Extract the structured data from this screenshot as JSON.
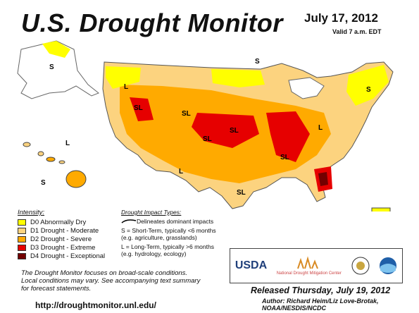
{
  "header": {
    "title": "U.S. Drought Monitor",
    "date": "July 17, 2012",
    "valid": "Valid 7 a.m. EDT"
  },
  "legend": {
    "heading": "Intensity:",
    "items": [
      {
        "label": "D0 Abnormally Dry",
        "color": "#ffff00"
      },
      {
        "label": "D1 Drought - Moderate",
        "color": "#fcd37f"
      },
      {
        "label": "D2 Drought - Severe",
        "color": "#ffaa00"
      },
      {
        "label": "D3 Drought - Extreme",
        "color": "#e60000"
      },
      {
        "label": "D4 Drought - Exceptional",
        "color": "#730000"
      }
    ]
  },
  "impact": {
    "heading": "Drought Impact Types:",
    "line_label": "Delineates dominant impacts",
    "short_term_1": "S = Short-Term, typically <6 months",
    "short_term_2": "(e.g. agriculture, grasslands)",
    "long_term_1": "L = Long-Term, typically >6 months",
    "long_term_2": "(e.g. hydrology, ecology)"
  },
  "map_labels": {
    "s": "S",
    "l": "L",
    "sl": "SL"
  },
  "footer": {
    "focus_1": "The Drought Monitor focuses on broad-scale conditions.",
    "focus_2": "Local conditions may vary. See accompanying text summary",
    "focus_3": "for forecast statements.",
    "released": "Released Thursday, July 19, 2012",
    "author": "Author: Richard Heim/Liz Love-Brotak, NOAA/NESDIS/NCDC",
    "url": "http://droughtmonitor.unl.edu/"
  },
  "logos": {
    "usda": "USDA",
    "ndmc": "National Drought Mitigation Center"
  }
}
